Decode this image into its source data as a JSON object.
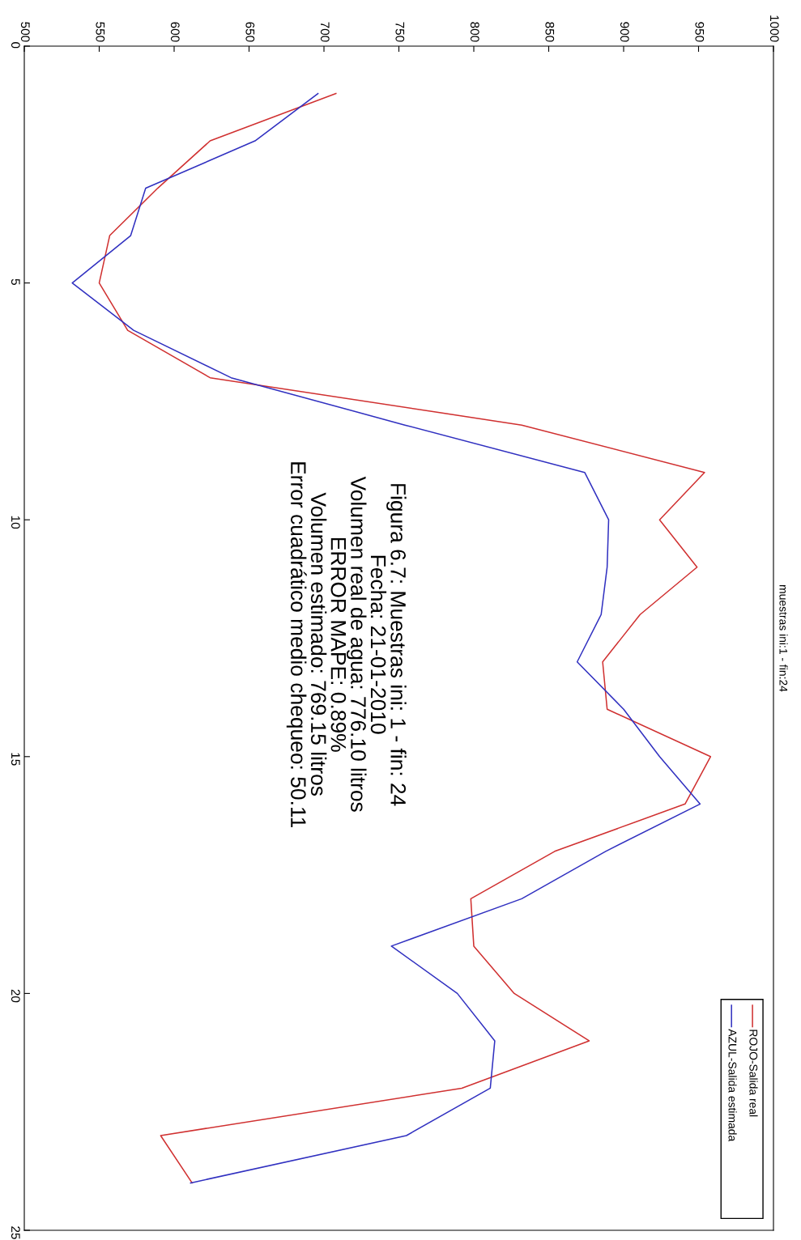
{
  "chart_data": {
    "type": "line",
    "title": "muestras ini:1 - fin:24",
    "series": [
      {
        "name": "ROJO-Salida real",
        "color": "#d03030",
        "x": [
          708,
          624,
          589,
          557,
          550,
          569,
          624,
          832,
          954,
          924,
          949,
          911,
          886,
          889,
          958,
          941,
          854,
          798,
          800,
          827,
          877,
          792,
          591,
          612
        ],
        "values": [
          1,
          2,
          3,
          4,
          5,
          6,
          7,
          8,
          9,
          10,
          11,
          12,
          13,
          14,
          15,
          16,
          17,
          18,
          19,
          20,
          21,
          22,
          23,
          24
        ]
      },
      {
        "name": "AZUL-Salida estimada",
        "color": "#3030c0",
        "x": [
          696,
          654,
          581,
          571,
          532,
          573,
          638,
          754,
          874,
          890,
          889,
          885,
          869,
          900,
          924,
          951,
          888,
          832,
          745,
          789,
          814,
          811,
          755,
          611
        ],
        "values": [
          1,
          2,
          3,
          4,
          5,
          6,
          7,
          8,
          9,
          10,
          11,
          12,
          13,
          14,
          15,
          16,
          17,
          18,
          19,
          20,
          21,
          22,
          23,
          24
        ]
      }
    ],
    "xlim": [
      500,
      1000
    ],
    "xticks": [
      500,
      550,
      600,
      650,
      700,
      750,
      800,
      850,
      900,
      950,
      1000
    ],
    "ylim": [
      25,
      0
    ],
    "yticks": [
      0,
      5,
      10,
      15,
      20,
      25
    ],
    "legend": "bottom right",
    "grid": false,
    "marker": "none",
    "line_style": "solid",
    "annotations": [
      "Figura 6.7: Muestras ini: 1 - fin: 24",
      "Fecha: 21-01-2010",
      "Volumen real de agua: 776.10 litros",
      "ERROR MAPE: 0.89%",
      "Volumen estimado: 769.15 litros",
      "Error cuadrático medio chequeo: 50.11"
    ]
  }
}
